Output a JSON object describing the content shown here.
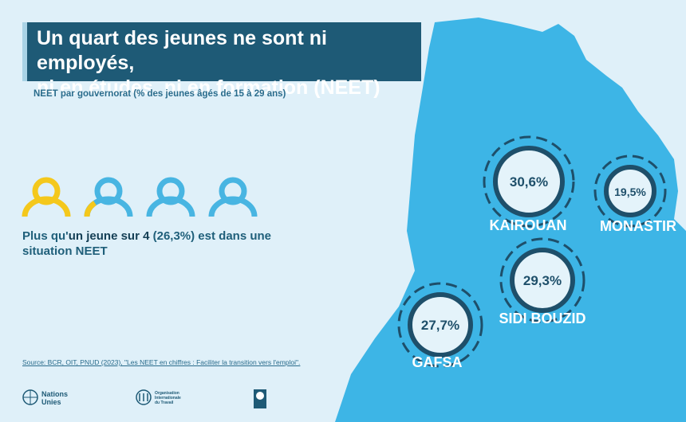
{
  "header": {
    "title_lines": [
      "Un quart des jeunes ne sont ni employés,",
      "ni en études, ni en formation (NEET)"
    ],
    "subtitle": "NEET par gouvernorat (% des jeunes âgés de 15 à 29 ans)"
  },
  "summary": {
    "parts": [
      "Plus qu'",
      "un jeune sur 4",
      " (26,3%) est dans une situation NEET"
    ]
  },
  "regions": [
    {
      "name": "KAIROUAN",
      "value": "30,6%"
    },
    {
      "name": "MONASTIR",
      "value": "19,5%"
    },
    {
      "name": "SIDI BOUZID",
      "value": "29,3%"
    },
    {
      "name": "GAFSA",
      "value": "27,7%"
    }
  ],
  "source": "Source: BCR, OIT, PNUD (2023), \"Les NEET en chiffres : Faciliter la transition vers l'emploi\".",
  "logos": {
    "un": "Nations Unies",
    "ilo": "Organisation Internationale du Travail"
  }
}
